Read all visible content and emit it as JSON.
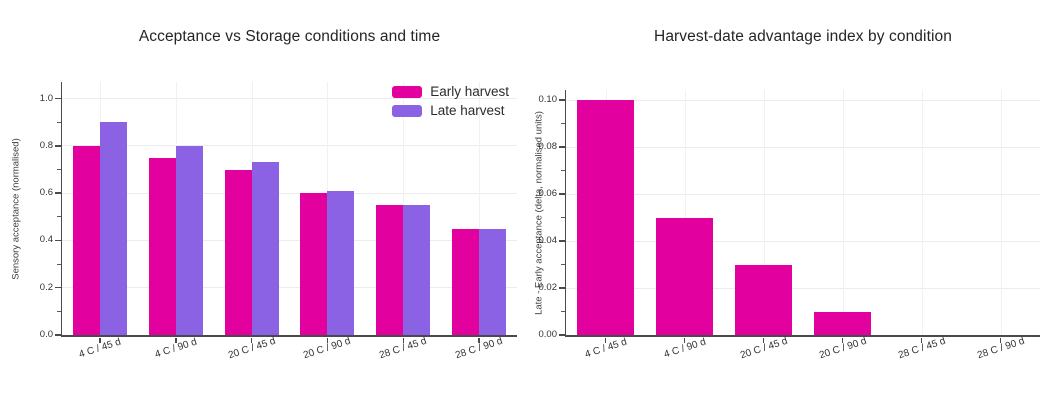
{
  "figure": {
    "background": "#ffffff"
  },
  "chart_data": [
    {
      "type": "bar",
      "title": "Acceptance vs Storage conditions and time",
      "xlabel": "",
      "ylabel": "Sensory acceptance (normalised)",
      "categories": [
        "4 C / 45 d",
        "4 C / 90 d",
        "20 C / 45 d",
        "20 C / 90 d",
        "28 C / 45 d",
        "28 C / 90 d"
      ],
      "series": [
        {
          "name": "Early harvest",
          "color": "#E2009E",
          "values": [
            0.8,
            0.75,
            0.7,
            0.6,
            0.55,
            0.45
          ]
        },
        {
          "name": "Late harvest",
          "color": "#8B62E4",
          "values": [
            0.9,
            0.8,
            0.73,
            0.61,
            0.55,
            0.45
          ]
        }
      ],
      "ylim": [
        0,
        1.07
      ],
      "yticks": [
        0,
        0.2,
        0.4,
        0.6,
        0.8,
        1.0
      ],
      "ytick_labels": [
        "0.0",
        "0.2",
        "0.4",
        "0.6",
        "0.8",
        "1.0"
      ],
      "grid": true,
      "legend_position": "upper right",
      "xticklabel_rotation": 20
    },
    {
      "type": "bar",
      "title": "Harvest-date advantage index by condition",
      "xlabel": "",
      "ylabel": "Late - Early acceptance (delta, normalised units)",
      "categories": [
        "4 C / 45 d",
        "4 C / 90 d",
        "20 C / 45 d",
        "20 C / 90 d",
        "28 C / 45 d",
        "28 C / 90 d"
      ],
      "series": [
        {
          "name": "",
          "color": "#E2009E",
          "values": [
            0.1,
            0.05,
            0.03,
            0.01,
            0.0,
            0.0
          ]
        }
      ],
      "ylim": [
        0,
        0.1043
      ],
      "yticks": [
        0,
        0.02,
        0.04,
        0.06,
        0.08,
        0.1
      ],
      "ytick_labels": [
        "0.00",
        "0.02",
        "0.04",
        "0.06",
        "0.08",
        "0.10"
      ],
      "grid": true,
      "legend_position": "none",
      "xticklabel_rotation": 20
    }
  ]
}
